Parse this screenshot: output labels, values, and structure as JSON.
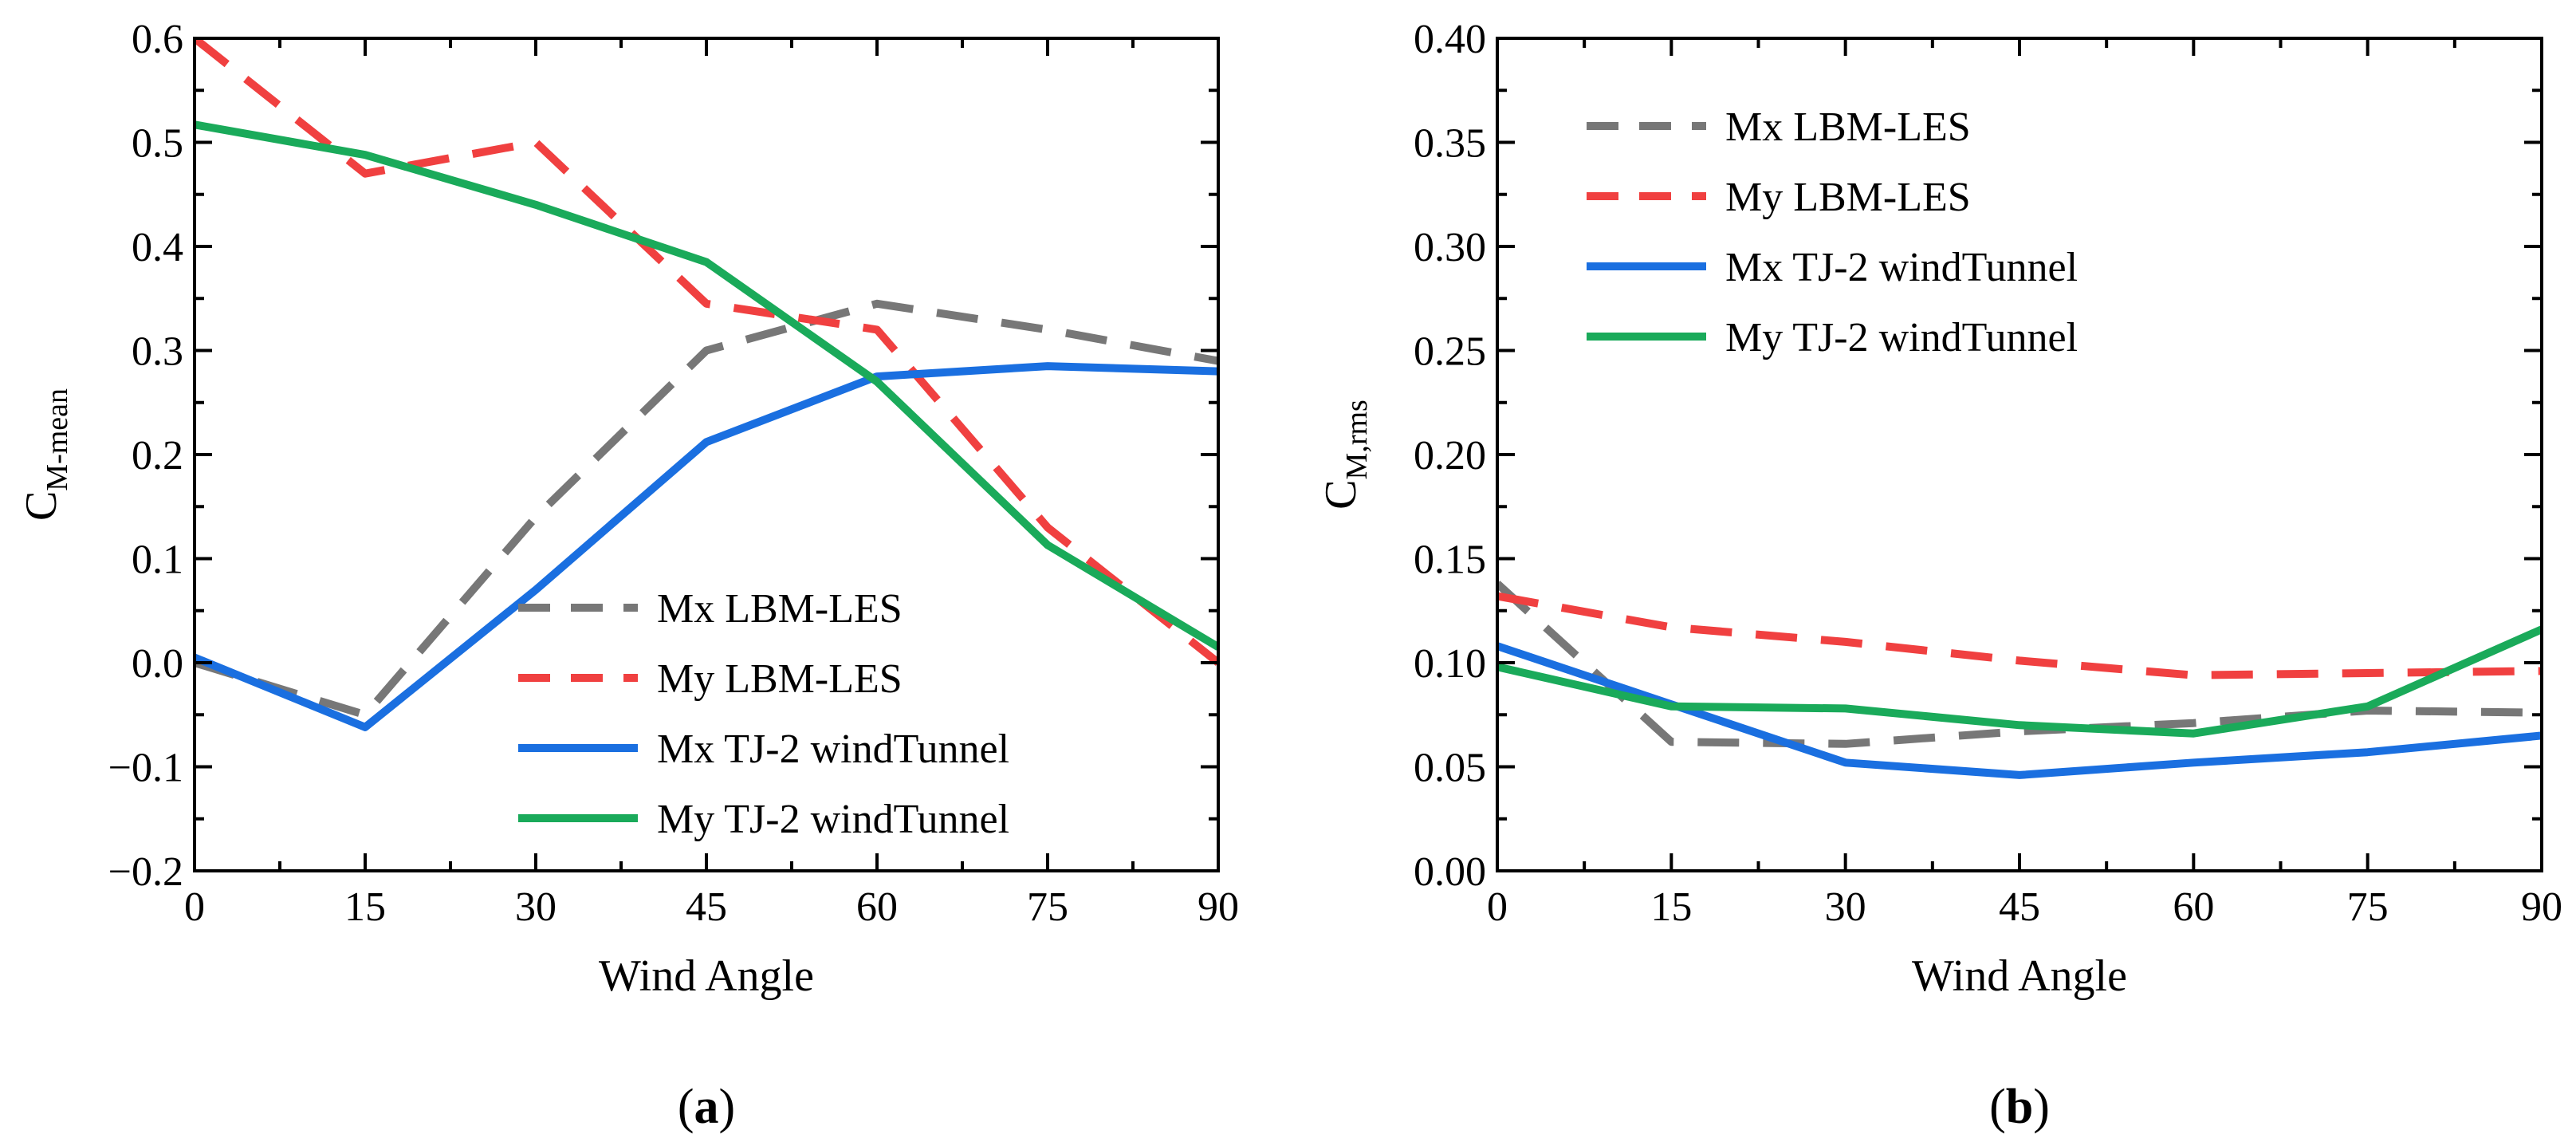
{
  "chart_data": [
    {
      "type": "line",
      "panel_label": {
        "open": "(",
        "letter": "a",
        "close": ")"
      },
      "xlabel": "Wind Angle",
      "ylabel_main": "C",
      "ylabel_sub": "M-mean",
      "x": [
        0,
        15,
        30,
        45,
        60,
        75,
        90
      ],
      "xlim": [
        0,
        90
      ],
      "ylim": [
        -0.2,
        0.6
      ],
      "xticks": [
        0,
        15,
        30,
        45,
        60,
        75,
        90
      ],
      "xtick_labels": [
        "0",
        "15",
        "30",
        "45",
        "60",
        "75",
        "90"
      ],
      "yticks": [
        -0.2,
        -0.1,
        0.0,
        0.1,
        0.2,
        0.3,
        0.4,
        0.5,
        0.6
      ],
      "ytick_labels": [
        "−0.2",
        "−0.1",
        "0.0",
        "0.1",
        "0.2",
        "0.3",
        "0.4",
        "0.5",
        "0.6"
      ],
      "legend_position": "lower-right",
      "series": [
        {
          "name": "Mx LBM-LES",
          "values": [
            0.0,
            -0.05,
            0.14,
            0.3,
            0.345,
            0.32,
            0.29
          ],
          "color": "#777777",
          "dash": "dashed"
        },
        {
          "name": "My LBM-LES",
          "values": [
            0.6,
            0.47,
            0.5,
            0.345,
            0.32,
            0.13,
            0.0
          ],
          "color": "#f04040",
          "dash": "dashed"
        },
        {
          "name": "Mx TJ-2 windTunnel",
          "values": [
            0.005,
            -0.062,
            0.07,
            0.212,
            0.275,
            0.285,
            0.28
          ],
          "color": "#1a6fe0",
          "dash": "solid"
        },
        {
          "name": "My TJ-2 windTunnel",
          "values": [
            0.517,
            0.488,
            0.44,
            0.385,
            0.27,
            0.113,
            0.015
          ],
          "color": "#1aaa5a",
          "dash": "solid"
        }
      ]
    },
    {
      "type": "line",
      "panel_label": {
        "open": "(",
        "letter": "b",
        "close": ")"
      },
      "xlabel": "Wind Angle",
      "ylabel_main": "C",
      "ylabel_sub": "M,rms",
      "x": [
        0,
        15,
        30,
        45,
        60,
        75,
        90
      ],
      "xlim": [
        0,
        90
      ],
      "ylim": [
        0.0,
        0.4
      ],
      "xticks": [
        0,
        15,
        30,
        45,
        60,
        75,
        90
      ],
      "xtick_labels": [
        "0",
        "15",
        "30",
        "45",
        "60",
        "75",
        "90"
      ],
      "yticks": [
        0.0,
        0.05,
        0.1,
        0.15,
        0.2,
        0.25,
        0.3,
        0.35,
        0.4
      ],
      "ytick_labels": [
        "0.00",
        "0.05",
        "0.10",
        "0.15",
        "0.20",
        "0.25",
        "0.30",
        "0.35",
        "0.40"
      ],
      "legend_position": "top-left",
      "series": [
        {
          "name": "Mx LBM-LES",
          "values": [
            0.138,
            0.062,
            0.061,
            0.067,
            0.071,
            0.077,
            0.076
          ],
          "color": "#777777",
          "dash": "dashed"
        },
        {
          "name": "My LBM-LES",
          "values": [
            0.132,
            0.117,
            0.11,
            0.101,
            0.094,
            0.095,
            0.096
          ],
          "color": "#f04040",
          "dash": "dashed"
        },
        {
          "name": "Mx TJ-2 windTunnel",
          "values": [
            0.108,
            0.08,
            0.052,
            0.046,
            0.052,
            0.057,
            0.065
          ],
          "color": "#1a6fe0",
          "dash": "solid"
        },
        {
          "name": "My TJ-2 windTunnel",
          "values": [
            0.098,
            0.079,
            0.078,
            0.07,
            0.066,
            0.079,
            0.116
          ],
          "color": "#1aaa5a",
          "dash": "solid"
        }
      ]
    }
  ]
}
